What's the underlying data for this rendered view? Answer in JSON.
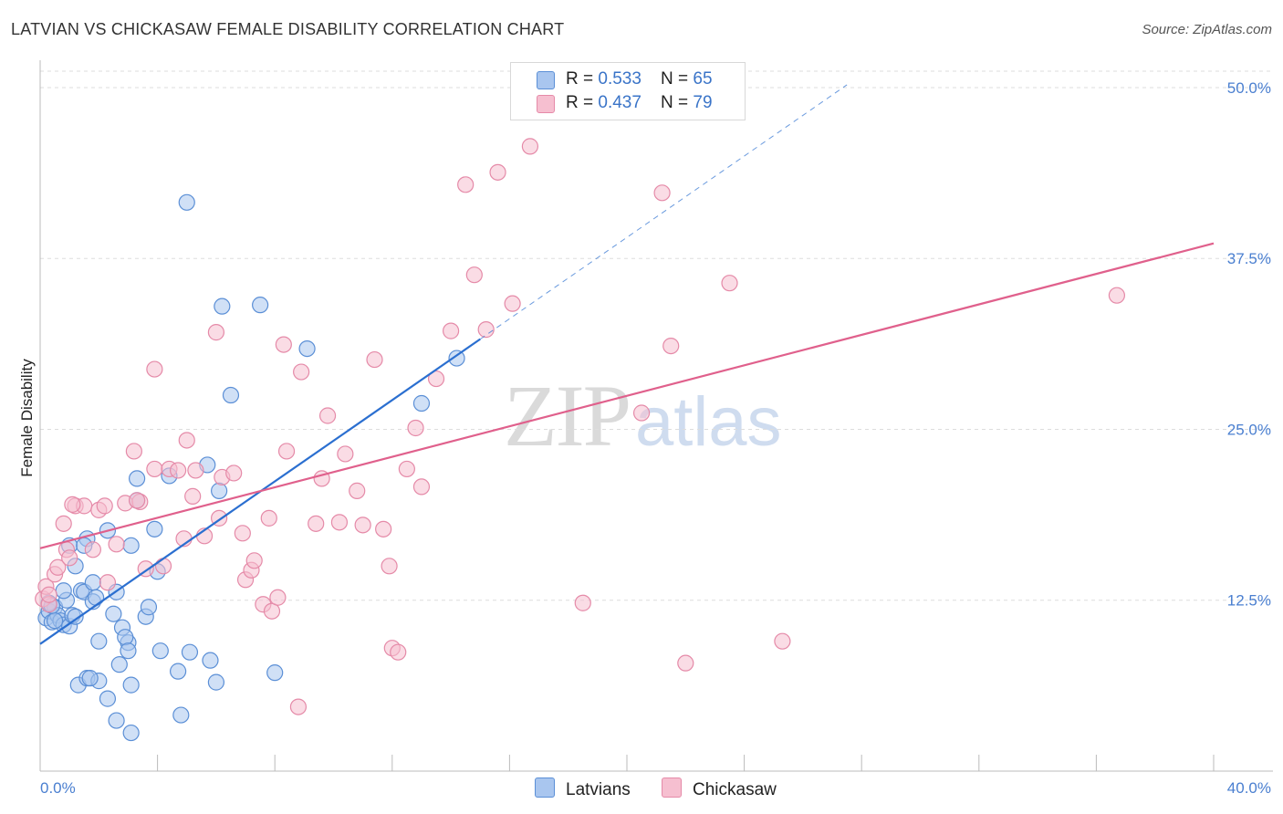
{
  "title": "LATVIAN VS CHICKASAW FEMALE DISABILITY CORRELATION CHART",
  "source": "Source: ZipAtlas.com",
  "watermark": {
    "zip": "ZIP",
    "atlas": "atlas"
  },
  "legend": {
    "rows": [
      {
        "r_label": "R = ",
        "r_value": "0.533",
        "n_label": "N = ",
        "n_value": "65"
      },
      {
        "r_label": "R = ",
        "r_value": "0.437",
        "n_label": "N = ",
        "n_value": "79"
      }
    ]
  },
  "bottom_legend": [
    "Latvians",
    "Chickasaw"
  ],
  "colors": {
    "latvians_fill": "#a9c6ef",
    "latvians_stroke": "#5b8fd6",
    "latvians_line": "#2b6fd0",
    "chickasaw_fill": "#f6bfd0",
    "chickasaw_stroke": "#e58aa8",
    "chickasaw_line": "#e0608c",
    "grid": "#dddddd",
    "tick_label": "#4a7fd0"
  },
  "chart_data": {
    "type": "scatter",
    "title": "LATVIAN VS CHICKASAW FEMALE DISABILITY CORRELATION CHART",
    "xlabel": "",
    "ylabel": "Female Disability",
    "xlim": [
      0,
      40
    ],
    "ylim": [
      0,
      52
    ],
    "x_tick_labels": [
      "0.0%",
      "40.0%"
    ],
    "y_ticks": [
      12.5,
      25.0,
      37.5,
      50.0
    ],
    "y_tick_labels": [
      "12.5%",
      "25.0%",
      "37.5%",
      "50.0%"
    ],
    "grid": true,
    "series": [
      {
        "name": "Latvians",
        "R": 0.533,
        "N": 65,
        "trend": {
          "x0": 0,
          "y0": 9.3,
          "x1": 15.0,
          "y1": 31.6,
          "dash_to_x": 27.5,
          "dash_to_y": 50.2
        },
        "points": [
          [
            0.2,
            11.2
          ],
          [
            0.3,
            11.7
          ],
          [
            0.4,
            10.9
          ],
          [
            0.5,
            12.0
          ],
          [
            0.6,
            11.4
          ],
          [
            0.7,
            11.0
          ],
          [
            0.8,
            10.7
          ],
          [
            0.9,
            12.5
          ],
          [
            0.3,
            12.3
          ],
          [
            0.5,
            11.0
          ],
          [
            0.8,
            13.2
          ],
          [
            1.0,
            10.6
          ],
          [
            1.1,
            11.4
          ],
          [
            1.2,
            11.3
          ],
          [
            1.0,
            16.5
          ],
          [
            1.2,
            15.0
          ],
          [
            1.4,
            13.2
          ],
          [
            1.5,
            13.1
          ],
          [
            1.6,
            17.0
          ],
          [
            1.5,
            16.5
          ],
          [
            1.8,
            12.4
          ],
          [
            1.8,
            13.8
          ],
          [
            1.9,
            12.7
          ],
          [
            2.3,
            17.6
          ],
          [
            2.5,
            11.5
          ],
          [
            2.6,
            13.1
          ],
          [
            2.8,
            10.5
          ],
          [
            3.0,
            9.4
          ],
          [
            2.9,
            9.8
          ],
          [
            3.1,
            16.5
          ],
          [
            3.3,
            21.4
          ],
          [
            3.3,
            19.8
          ],
          [
            3.6,
            11.3
          ],
          [
            3.7,
            12.0
          ],
          [
            3.9,
            17.7
          ],
          [
            4.0,
            14.6
          ],
          [
            4.1,
            8.8
          ],
          [
            4.4,
            21.6
          ],
          [
            4.7,
            7.3
          ],
          [
            5.0,
            41.6
          ],
          [
            5.1,
            8.7
          ],
          [
            5.7,
            22.4
          ],
          [
            5.8,
            8.1
          ],
          [
            6.0,
            6.5
          ],
          [
            6.1,
            20.5
          ],
          [
            6.2,
            34.0
          ],
          [
            6.5,
            27.5
          ],
          [
            7.5,
            34.1
          ],
          [
            8.0,
            7.2
          ],
          [
            9.1,
            30.9
          ],
          [
            13.0,
            26.9
          ],
          [
            14.2,
            30.2
          ],
          [
            1.3,
            6.3
          ],
          [
            1.6,
            6.8
          ],
          [
            2.0,
            6.6
          ],
          [
            2.3,
            5.3
          ],
          [
            2.6,
            3.7
          ],
          [
            3.1,
            2.8
          ],
          [
            3.1,
            6.3
          ],
          [
            4.8,
            4.1
          ],
          [
            2.0,
            9.5
          ],
          [
            2.7,
            7.8
          ],
          [
            3.0,
            8.8
          ],
          [
            0.4,
            12.1
          ],
          [
            1.7,
            6.8
          ]
        ]
      },
      {
        "name": "Chickasaw",
        "R": 0.437,
        "N": 79,
        "trend": {
          "x0": 0,
          "y0": 16.3,
          "x1": 40.0,
          "y1": 38.6
        },
        "points": [
          [
            0.1,
            12.6
          ],
          [
            0.2,
            13.5
          ],
          [
            0.3,
            12.2
          ],
          [
            0.5,
            14.4
          ],
          [
            0.6,
            14.9
          ],
          [
            0.8,
            18.1
          ],
          [
            0.9,
            16.2
          ],
          [
            1.0,
            15.6
          ],
          [
            1.2,
            19.4
          ],
          [
            1.5,
            19.4
          ],
          [
            1.8,
            16.2
          ],
          [
            2.0,
            19.1
          ],
          [
            2.2,
            19.4
          ],
          [
            2.3,
            13.8
          ],
          [
            2.6,
            16.6
          ],
          [
            2.9,
            19.6
          ],
          [
            3.2,
            23.4
          ],
          [
            3.4,
            19.7
          ],
          [
            3.6,
            14.8
          ],
          [
            3.9,
            22.1
          ],
          [
            3.9,
            29.4
          ],
          [
            4.2,
            15.0
          ],
          [
            4.4,
            22.1
          ],
          [
            4.7,
            22.0
          ],
          [
            4.9,
            17.0
          ],
          [
            5.0,
            24.2
          ],
          [
            5.2,
            20.1
          ],
          [
            5.3,
            22.0
          ],
          [
            5.6,
            17.2
          ],
          [
            6.0,
            32.1
          ],
          [
            6.1,
            18.5
          ],
          [
            6.2,
            21.5
          ],
          [
            6.6,
            21.8
          ],
          [
            6.9,
            17.4
          ],
          [
            7.0,
            14.0
          ],
          [
            7.2,
            14.7
          ],
          [
            7.3,
            15.4
          ],
          [
            7.6,
            12.2
          ],
          [
            7.8,
            18.5
          ],
          [
            7.9,
            11.7
          ],
          [
            8.1,
            12.7
          ],
          [
            8.3,
            31.2
          ],
          [
            8.4,
            23.4
          ],
          [
            8.8,
            4.7
          ],
          [
            8.9,
            29.2
          ],
          [
            9.4,
            18.1
          ],
          [
            9.6,
            21.4
          ],
          [
            9.8,
            26.0
          ],
          [
            10.2,
            18.2
          ],
          [
            10.4,
            23.2
          ],
          [
            10.8,
            20.5
          ],
          [
            11.0,
            18.0
          ],
          [
            11.4,
            30.1
          ],
          [
            11.7,
            17.7
          ],
          [
            11.9,
            15.0
          ],
          [
            12.0,
            9.0
          ],
          [
            12.2,
            8.7
          ],
          [
            12.5,
            22.1
          ],
          [
            12.8,
            25.1
          ],
          [
            13.0,
            20.8
          ],
          [
            13.5,
            28.7
          ],
          [
            14.0,
            32.2
          ],
          [
            14.5,
            42.9
          ],
          [
            14.8,
            36.3
          ],
          [
            15.2,
            32.3
          ],
          [
            15.6,
            43.8
          ],
          [
            16.1,
            34.2
          ],
          [
            16.7,
            45.7
          ],
          [
            18.5,
            12.3
          ],
          [
            20.5,
            26.2
          ],
          [
            21.2,
            42.3
          ],
          [
            21.5,
            31.1
          ],
          [
            22.0,
            7.9
          ],
          [
            23.5,
            35.7
          ],
          [
            25.3,
            9.5
          ],
          [
            36.7,
            34.8
          ],
          [
            1.1,
            19.5
          ],
          [
            3.3,
            19.8
          ],
          [
            0.3,
            12.9
          ]
        ]
      }
    ]
  }
}
